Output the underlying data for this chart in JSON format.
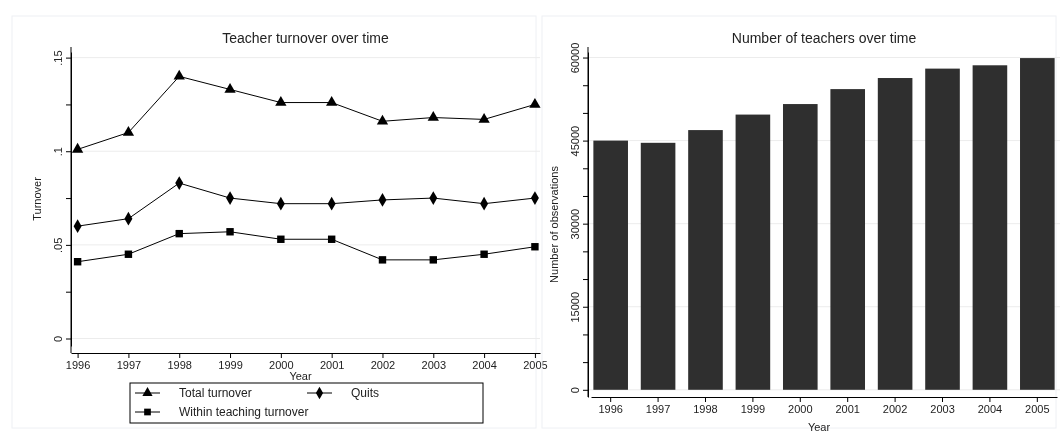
{
  "chart_data": [
    {
      "type": "line",
      "title": "Teacher turnover over time",
      "xlabel": "Year",
      "ylabel": "Turnover",
      "x": [
        1996,
        1997,
        1998,
        1999,
        2000,
        2001,
        2002,
        2003,
        2004,
        2005
      ],
      "xlim": [
        1995.87,
        2005.1
      ],
      "xticks": [
        1996,
        1997,
        1998,
        1999,
        2000,
        2001,
        2002,
        2003,
        2004,
        2005
      ],
      "ylim": [
        -0.004,
        0.153
      ],
      "yticks": [
        {
          "value": 0,
          "label": "0"
        },
        {
          "value": 0.025,
          "label": null
        },
        {
          "value": 0.05,
          "label": ".05"
        },
        {
          "value": 0.075,
          "label": null
        },
        {
          "value": 0.1,
          "label": ".1"
        },
        {
          "value": 0.125,
          "label": null
        },
        {
          "value": 0.15,
          "label": ".15"
        }
      ],
      "grid": "y",
      "legend": "bottom",
      "line_style": "solid",
      "series": [
        {
          "name": "Total turnover",
          "color": "#000000",
          "marker": "triangle",
          "values": [
            0.101,
            0.11,
            0.14,
            0.133,
            0.126,
            0.126,
            0.116,
            0.118,
            0.117,
            0.125
          ]
        },
        {
          "name": "Quits",
          "color": "#000000",
          "marker": "diamond",
          "values": [
            0.06,
            0.064,
            0.083,
            0.075,
            0.072,
            0.072,
            0.074,
            0.075,
            0.072,
            0.075
          ]
        },
        {
          "name": "Within teaching turnover",
          "color": "#000000",
          "marker": "square",
          "values": [
            0.041,
            0.045,
            0.056,
            0.057,
            0.053,
            0.053,
            0.042,
            0.042,
            0.045,
            0.049
          ]
        }
      ]
    },
    {
      "type": "bar",
      "title": "Number of teachers over time",
      "xlabel": "Year",
      "ylabel": "Number of observations",
      "categories": [
        "1996",
        "1997",
        "1998",
        "1999",
        "2000",
        "2001",
        "2002",
        "2003",
        "2004",
        "2005"
      ],
      "values": [
        45000,
        44600,
        46900,
        49700,
        51600,
        54300,
        56300,
        58000,
        58600,
        59900
      ],
      "color": "#2f2f2f",
      "ylim": [
        -1300,
        61000
      ],
      "yticks": [
        0,
        {
          "value": 5000,
          "label": null
        },
        {
          "value": 10000,
          "label": null
        },
        15000,
        {
          "value": 20000,
          "label": null
        },
        {
          "value": 25000,
          "label": null
        },
        30000,
        {
          "value": 35000,
          "label": null
        },
        {
          "value": 40000,
          "label": null
        },
        45000,
        {
          "value": 50000,
          "label": null
        },
        {
          "value": 55000,
          "label": null
        },
        60000
      ],
      "grid": "y"
    }
  ]
}
